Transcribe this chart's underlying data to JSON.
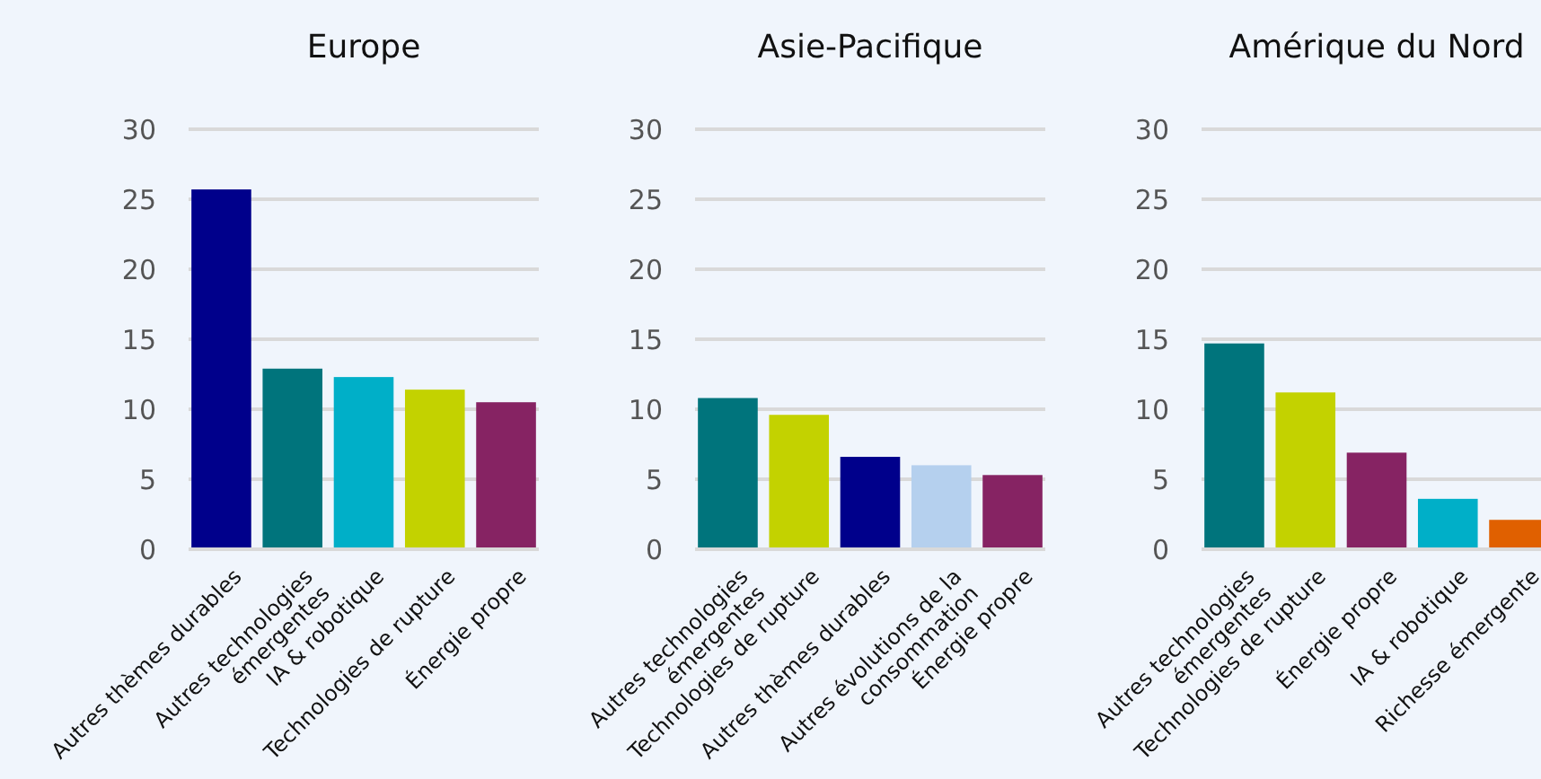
{
  "chart_data": [
    {
      "type": "bar",
      "title": "Europe",
      "categories": [
        "Autres thèmes durables",
        "Autres technologies\némergentes",
        "IA & robotique",
        "Technologies de rupture",
        "Énergie propre"
      ],
      "values": [
        25.7,
        12.9,
        12.3,
        11.4,
        10.5
      ],
      "colors": [
        "#00008b",
        "#00747c",
        "#00afc8",
        "#c3d200",
        "#862363"
      ],
      "ylim": [
        0,
        30
      ],
      "yticks": [
        0,
        5,
        10,
        15,
        20,
        25,
        30
      ],
      "grid": "y"
    },
    {
      "type": "bar",
      "title": "Asie-Pacifique",
      "categories": [
        "Autres technologies\némergentes",
        "Technologies de rupture",
        "Autres thèmes durables",
        "Autres évolutions de la\nconsommation",
        "Énergie propre"
      ],
      "values": [
        10.8,
        9.6,
        6.6,
        6.0,
        5.3
      ],
      "colors": [
        "#00747c",
        "#c3d200",
        "#00008b",
        "#b5d0ee",
        "#862363"
      ],
      "ylim": [
        0,
        30
      ],
      "yticks": [
        0,
        5,
        10,
        15,
        20,
        25,
        30
      ],
      "grid": "y"
    },
    {
      "type": "bar",
      "title": "Amérique du Nord",
      "categories": [
        "Autres technologies\némergentes",
        "Technologies de rupture",
        "Énergie propre",
        "IA & robotique",
        "Richesse émergente"
      ],
      "values": [
        14.7,
        11.2,
        6.9,
        3.6,
        2.1
      ],
      "colors": [
        "#00747c",
        "#c3d200",
        "#862363",
        "#00afc8",
        "#e06000"
      ],
      "ylim": [
        0,
        30
      ],
      "yticks": [
        0,
        5,
        10,
        15,
        20,
        25,
        30
      ],
      "grid": "y"
    }
  ]
}
